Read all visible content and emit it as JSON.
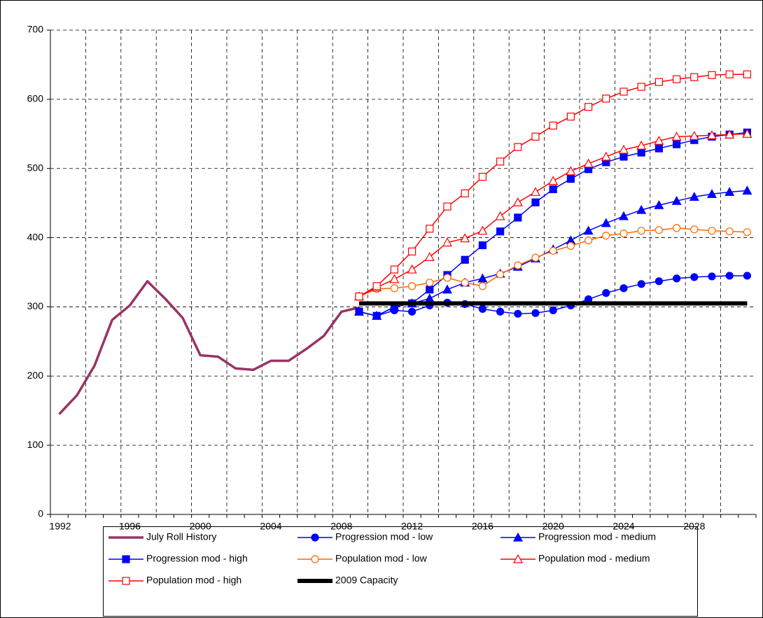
{
  "chart_data": {
    "type": "line",
    "categories": [
      "1992",
      null,
      null,
      null,
      "1996",
      null,
      null,
      null,
      "2000",
      null,
      null,
      null,
      "2004",
      null,
      null,
      null,
      "2008",
      null,
      null,
      null,
      "2012",
      null,
      null,
      null,
      "2016",
      null,
      null,
      null,
      "2020",
      null,
      null,
      null,
      "2024",
      null,
      null,
      null,
      "2028",
      null,
      null,
      null
    ],
    "ylim": [
      0,
      700
    ],
    "yticks": [
      0,
      100,
      200,
      300,
      400,
      500,
      600,
      700
    ],
    "grid": true,
    "legend": "bottom",
    "series": [
      {
        "name": "July Roll History",
        "color": "#993366",
        "marker": "none",
        "width": 3.5,
        "values": [
          145,
          172,
          215,
          281,
          302,
          337,
          312,
          284,
          230,
          228,
          211,
          209,
          222,
          222,
          239,
          258,
          293,
          299,
          null,
          null,
          null,
          null,
          null,
          null,
          null,
          null,
          null,
          null,
          null,
          null,
          null,
          null,
          null,
          null,
          null,
          null,
          null,
          null,
          null,
          null
        ]
      },
      {
        "name": "Progression mod - low",
        "color": "#0000ff",
        "marker": "circle",
        "width": 1.5,
        "values": [
          null,
          null,
          null,
          null,
          null,
          null,
          null,
          null,
          null,
          null,
          null,
          null,
          null,
          null,
          null,
          null,
          null,
          293,
          287,
          295,
          293,
          302,
          306,
          304,
          297,
          293,
          290,
          291,
          295,
          302,
          311,
          320,
          327,
          333,
          337,
          341,
          343,
          344,
          345,
          345
        ]
      },
      {
        "name": "Progression mod - medium",
        "color": "#0000ff",
        "marker": "triangle",
        "width": 1.5,
        "values": [
          null,
          null,
          null,
          null,
          null,
          null,
          null,
          null,
          null,
          null,
          null,
          null,
          null,
          null,
          null,
          null,
          null,
          293,
          287,
          300,
          305,
          312,
          325,
          335,
          341,
          348,
          358,
          370,
          383,
          396,
          410,
          421,
          431,
          440,
          447,
          453,
          459,
          463,
          466,
          468
        ]
      },
      {
        "name": "Progression mod - high",
        "color": "#0000ff",
        "marker": "square",
        "width": 1.5,
        "values": [
          null,
          null,
          null,
          null,
          null,
          null,
          null,
          null,
          null,
          null,
          null,
          null,
          null,
          null,
          null,
          null,
          null,
          293,
          287,
          300,
          305,
          325,
          346,
          368,
          389,
          409,
          429,
          451,
          470,
          485,
          499,
          509,
          517,
          523,
          529,
          535,
          541,
          546,
          549,
          552
        ]
      },
      {
        "name": "Population mod - low",
        "color": "#ff6600",
        "marker": "circle-open",
        "width": 1.5,
        "values": [
          null,
          null,
          null,
          null,
          null,
          null,
          null,
          null,
          null,
          null,
          null,
          null,
          null,
          null,
          null,
          null,
          null,
          315,
          326,
          327,
          330,
          335,
          342,
          335,
          330,
          347,
          360,
          371,
          381,
          388,
          396,
          403,
          406,
          410,
          411,
          414,
          412,
          410,
          409,
          408
        ]
      },
      {
        "name": "Population mod - medium",
        "color": "#ff0000",
        "marker": "triangle-open",
        "width": 1.5,
        "values": [
          null,
          null,
          null,
          null,
          null,
          null,
          null,
          null,
          null,
          null,
          null,
          null,
          null,
          null,
          null,
          null,
          null,
          315,
          328,
          340,
          354,
          372,
          393,
          399,
          410,
          431,
          451,
          466,
          482,
          496,
          507,
          517,
          527,
          533,
          540,
          546,
          547,
          548,
          549,
          550
        ]
      },
      {
        "name": "Population mod - high",
        "color": "#ff0000",
        "marker": "square-open",
        "width": 1.5,
        "values": [
          null,
          null,
          null,
          null,
          null,
          null,
          null,
          null,
          null,
          null,
          null,
          null,
          null,
          null,
          null,
          null,
          null,
          315,
          330,
          354,
          380,
          413,
          445,
          464,
          488,
          510,
          531,
          546,
          562,
          575,
          589,
          601,
          611,
          618,
          625,
          629,
          632,
          635,
          636,
          636
        ]
      },
      {
        "name": "2009 Capacity",
        "color": "#000000",
        "marker": "none",
        "width": 6,
        "values": [
          null,
          null,
          null,
          null,
          null,
          null,
          null,
          null,
          null,
          null,
          null,
          null,
          null,
          null,
          null,
          null,
          null,
          305,
          305,
          305,
          305,
          305,
          305,
          305,
          305,
          305,
          305,
          305,
          305,
          305,
          305,
          305,
          305,
          305,
          305,
          305,
          305,
          305,
          305,
          305
        ]
      }
    ]
  }
}
